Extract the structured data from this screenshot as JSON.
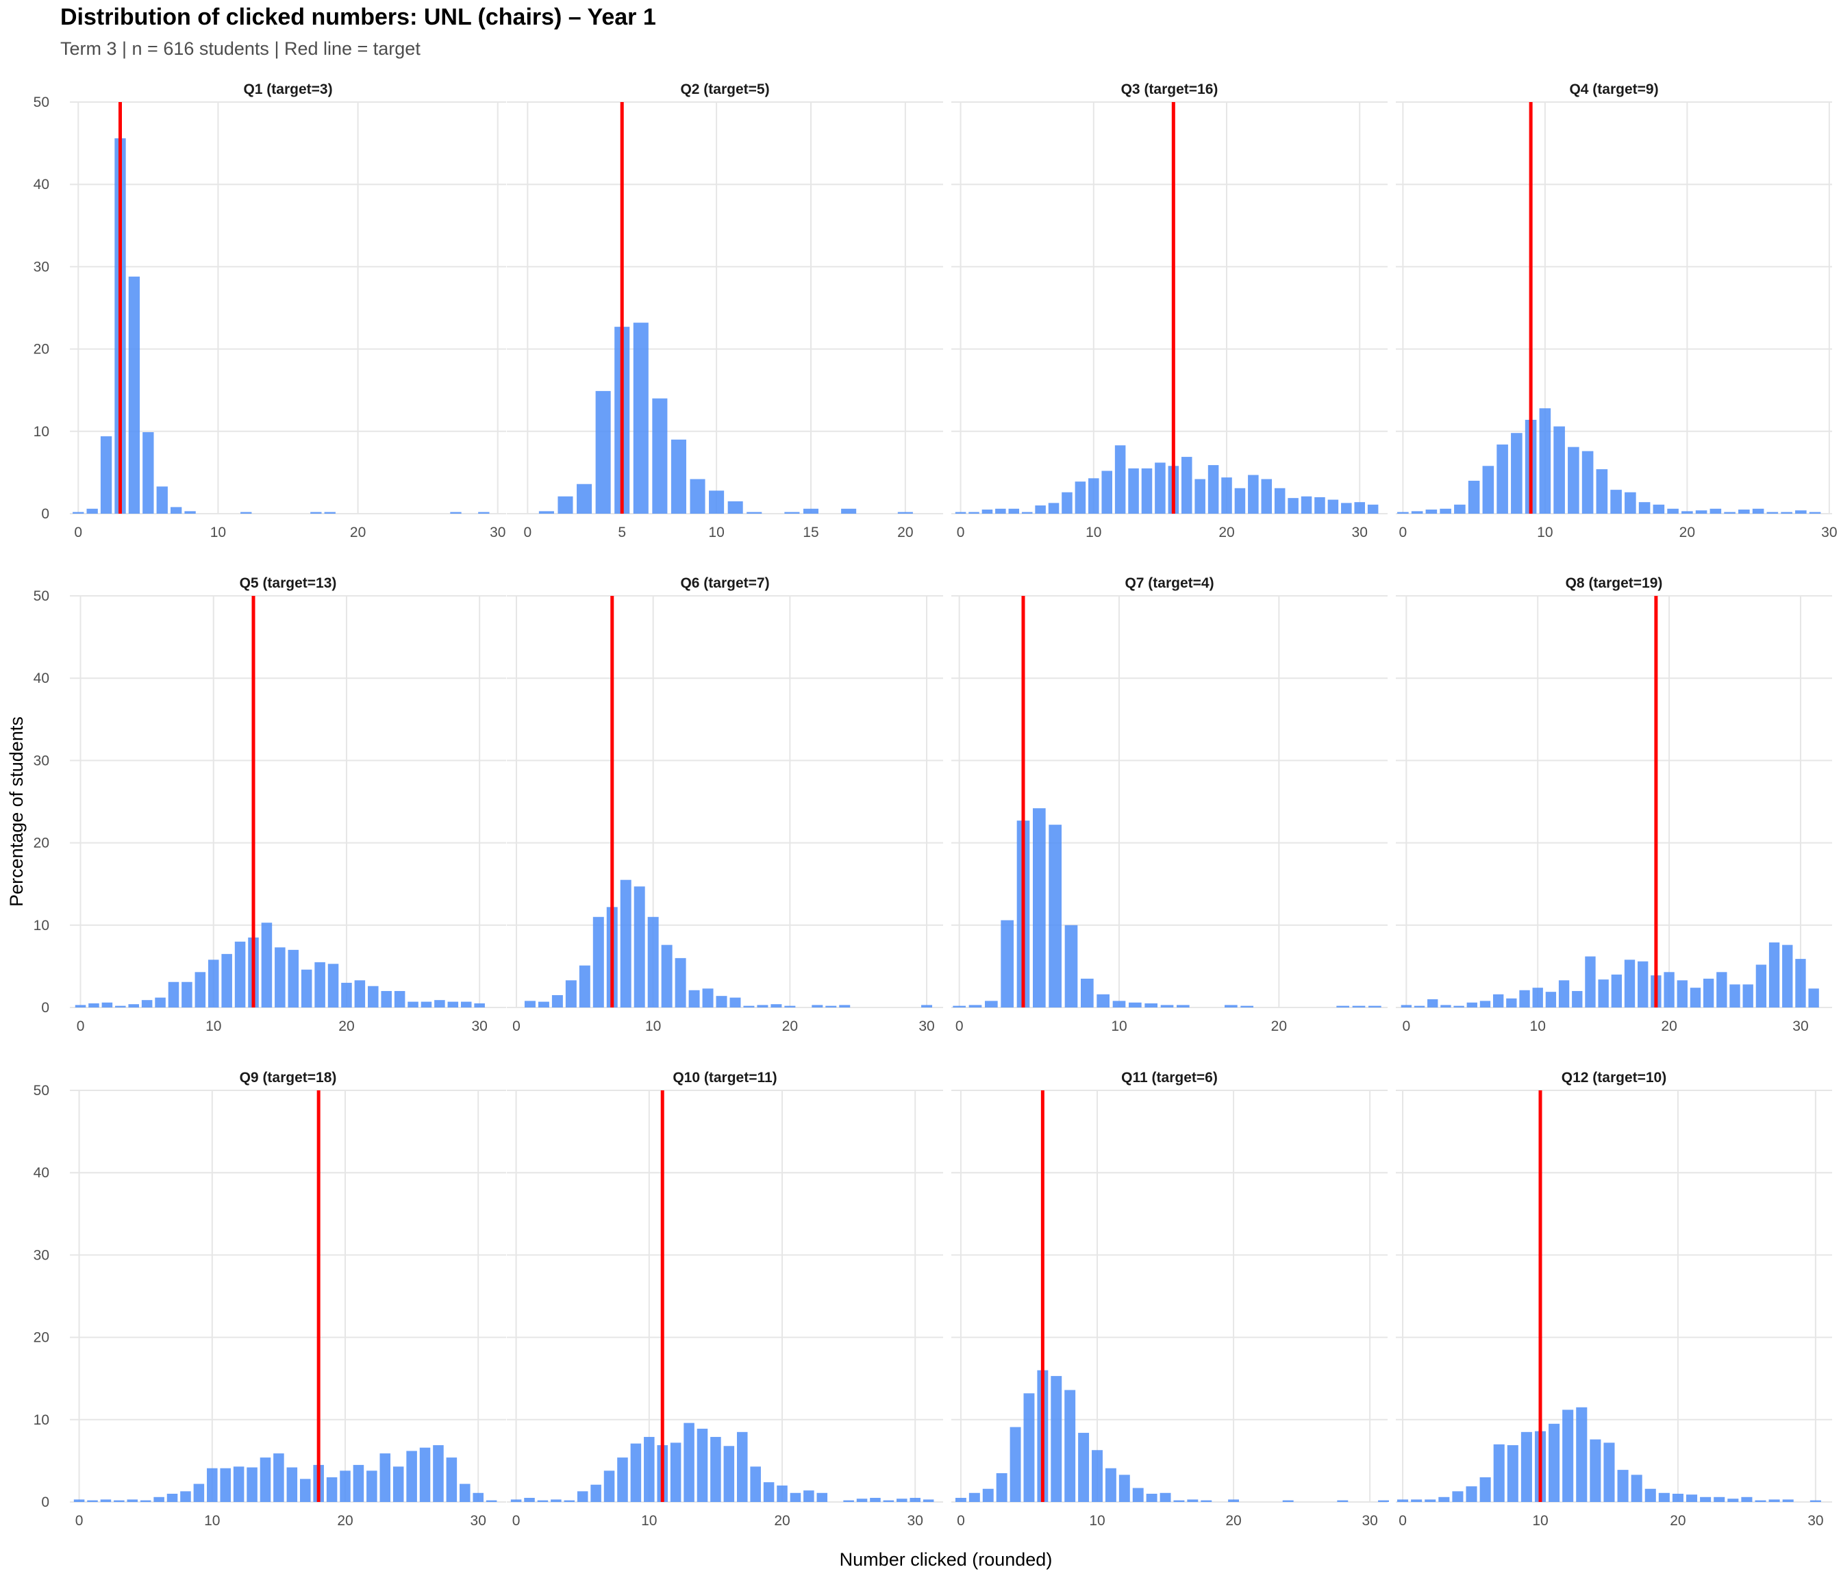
{
  "chart_data": {
    "type": "bar",
    "title": "Distribution of clicked numbers: UNL (chairs) – Year 1",
    "subtitle": "Term 3 | n = 616 students | Red line = target",
    "xlabel": "Number clicked (rounded)",
    "ylabel": "Percentage of students",
    "ylim": [
      0,
      50
    ],
    "yticks": [
      0,
      10,
      20,
      30,
      40,
      50
    ],
    "bar_color": "#4F8EF7",
    "target_color": "#FF0000",
    "grid": true,
    "facets": [
      {
        "name": "Q1 (target=3)",
        "target": 3,
        "xlim": [
          -0.6,
          30.6
        ],
        "xticks": [
          0,
          10,
          20,
          30
        ],
        "x": [
          0,
          1,
          2,
          3,
          4,
          5,
          6,
          7,
          8,
          12,
          17,
          18,
          27,
          29
        ],
        "values": [
          0.2,
          0.6,
          9.4,
          45.6,
          28.8,
          9.9,
          3.3,
          0.8,
          0.3,
          0.2,
          0.2,
          0.2,
          0.2,
          0.2
        ]
      },
      {
        "name": "Q2 (target=5)",
        "target": 5,
        "xlim": [
          -1.1,
          22.0
        ],
        "xticks": [
          0,
          5,
          10,
          15,
          20
        ],
        "x": [
          1,
          2,
          3,
          4,
          5,
          6,
          7,
          8,
          9,
          10,
          11,
          12,
          14,
          15,
          17,
          20
        ],
        "values": [
          0.3,
          2.1,
          3.6,
          14.9,
          22.7,
          23.2,
          14.0,
          9.0,
          4.2,
          2.8,
          1.5,
          0.2,
          0.2,
          0.6,
          0.6,
          0.2
        ]
      },
      {
        "name": "Q3 (target=16)",
        "target": 16,
        "xlim": [
          -0.7,
          32.1
        ],
        "xticks": [
          0,
          10,
          20,
          30
        ],
        "x": [
          0,
          1,
          2,
          3,
          4,
          5,
          6,
          7,
          8,
          9,
          10,
          11,
          12,
          13,
          14,
          15,
          16,
          17,
          18,
          19,
          20,
          21,
          22,
          23,
          24,
          25,
          26,
          27,
          28,
          29,
          30,
          31
        ],
        "values": [
          0.2,
          0.2,
          0.5,
          0.6,
          0.6,
          0.2,
          1.0,
          1.3,
          2.6,
          3.9,
          4.3,
          5.2,
          8.3,
          5.5,
          5.5,
          6.2,
          5.8,
          6.9,
          4.2,
          5.9,
          4.4,
          3.1,
          4.7,
          4.2,
          3.1,
          1.9,
          2.1,
          2.0,
          1.7,
          1.3,
          1.4,
          1.1
        ]
      },
      {
        "name": "Q4 (target=9)",
        "target": 9,
        "xlim": [
          -0.5,
          30.2
        ],
        "xticks": [
          0,
          10,
          20,
          30
        ],
        "x": [
          0,
          1,
          2,
          3,
          4,
          5,
          6,
          7,
          8,
          9,
          10,
          11,
          12,
          13,
          14,
          15,
          16,
          17,
          18,
          19,
          20,
          21,
          22,
          23,
          24,
          25,
          26,
          27,
          28,
          29
        ],
        "values": [
          0.2,
          0.3,
          0.5,
          0.6,
          1.1,
          4.0,
          5.8,
          8.4,
          9.8,
          11.4,
          12.8,
          10.6,
          8.1,
          7.6,
          5.4,
          2.9,
          2.6,
          1.4,
          1.1,
          0.6,
          0.3,
          0.4,
          0.6,
          0.2,
          0.5,
          0.6,
          0.2,
          0.2,
          0.4,
          0.2
        ]
      },
      {
        "name": "Q5 (target=13)",
        "target": 13,
        "xlim": [
          -0.8,
          32.0
        ],
        "xticks": [
          0,
          10,
          20,
          30
        ],
        "x": [
          0,
          1,
          2,
          3,
          4,
          5,
          6,
          7,
          8,
          9,
          10,
          11,
          12,
          13,
          14,
          15,
          16,
          17,
          18,
          19,
          20,
          21,
          22,
          23,
          24,
          25,
          26,
          27,
          28,
          29,
          30
        ],
        "values": [
          0.3,
          0.5,
          0.6,
          0.2,
          0.4,
          0.9,
          1.2,
          3.1,
          3.1,
          4.3,
          5.8,
          6.5,
          8.0,
          8.5,
          10.3,
          7.3,
          7.0,
          4.6,
          5.5,
          5.3,
          3.0,
          3.3,
          2.6,
          2.0,
          2.0,
          0.7,
          0.7,
          0.9,
          0.7,
          0.7,
          0.5
        ]
      },
      {
        "name": "Q6 (target=7)",
        "target": 7,
        "xlim": [
          -0.7,
          31.2
        ],
        "xticks": [
          0,
          10,
          20,
          30
        ],
        "x": [
          1,
          2,
          3,
          4,
          5,
          6,
          7,
          8,
          9,
          10,
          11,
          12,
          13,
          14,
          15,
          16,
          17,
          18,
          19,
          20,
          22,
          23,
          24,
          30
        ],
        "values": [
          0.8,
          0.7,
          1.5,
          3.3,
          5.1,
          11.0,
          12.2,
          15.5,
          14.7,
          11.0,
          7.6,
          6.0,
          2.1,
          2.3,
          1.4,
          1.2,
          0.2,
          0.3,
          0.4,
          0.2,
          0.3,
          0.2,
          0.3,
          0.3
        ]
      },
      {
        "name": "Q7 (target=4)",
        "target": 4,
        "xlim": [
          -0.5,
          26.8
        ],
        "xticks": [
          0,
          10,
          20
        ],
        "x": [
          0,
          1,
          2,
          3,
          4,
          5,
          6,
          7,
          8,
          9,
          10,
          11,
          12,
          13,
          14,
          17,
          18,
          24,
          25,
          26
        ],
        "values": [
          0.2,
          0.3,
          0.8,
          10.6,
          22.7,
          24.2,
          22.2,
          10.0,
          3.5,
          1.6,
          0.8,
          0.6,
          0.5,
          0.3,
          0.3,
          0.3,
          0.2,
          0.2,
          0.2,
          0.2
        ]
      },
      {
        "name": "Q8 (target=19)",
        "target": 19,
        "xlim": [
          -0.8,
          32.4
        ],
        "xticks": [
          0,
          10,
          20,
          30
        ],
        "x": [
          0,
          1,
          2,
          3,
          4,
          5,
          6,
          7,
          8,
          9,
          10,
          11,
          12,
          13,
          14,
          15,
          16,
          17,
          18,
          19,
          20,
          21,
          22,
          23,
          24,
          25,
          26,
          27,
          28,
          29,
          30,
          31
        ],
        "values": [
          0.3,
          0.2,
          1.0,
          0.3,
          0.2,
          0.6,
          0.8,
          1.6,
          1.1,
          2.1,
          2.4,
          1.9,
          3.3,
          2.0,
          6.2,
          3.4,
          4.0,
          5.8,
          5.6,
          3.9,
          4.3,
          3.3,
          2.4,
          3.5,
          4.3,
          2.8,
          2.8,
          5.2,
          7.9,
          7.6,
          5.9,
          2.3
        ]
      },
      {
        "name": "Q9 (target=18)",
        "target": 18,
        "xlim": [
          -0.7,
          32.1
        ],
        "xticks": [
          0,
          10,
          20,
          30
        ],
        "x": [
          0,
          1,
          2,
          3,
          4,
          5,
          6,
          7,
          8,
          9,
          10,
          11,
          12,
          13,
          14,
          15,
          16,
          17,
          18,
          19,
          20,
          21,
          22,
          23,
          24,
          25,
          26,
          27,
          28,
          29,
          30,
          31
        ],
        "values": [
          0.3,
          0.2,
          0.3,
          0.2,
          0.3,
          0.2,
          0.6,
          1.0,
          1.3,
          2.2,
          4.1,
          4.1,
          4.3,
          4.2,
          5.4,
          5.9,
          4.2,
          2.8,
          4.5,
          3.0,
          3.8,
          4.5,
          3.8,
          5.9,
          4.3,
          6.2,
          6.6,
          6.9,
          5.4,
          2.2,
          1.1,
          0.2
        ]
      },
      {
        "name": "Q10 (target=11)",
        "target": 11,
        "xlim": [
          -0.7,
          32.1
        ],
        "xticks": [
          0,
          10,
          20,
          30
        ],
        "x": [
          0,
          1,
          2,
          3,
          4,
          5,
          6,
          7,
          8,
          9,
          10,
          11,
          12,
          13,
          14,
          15,
          16,
          17,
          18,
          19,
          20,
          21,
          22,
          23,
          25,
          26,
          27,
          28,
          29,
          30,
          31
        ],
        "values": [
          0.3,
          0.5,
          0.2,
          0.3,
          0.2,
          1.3,
          2.1,
          3.8,
          5.4,
          7.1,
          7.9,
          6.9,
          7.2,
          9.6,
          8.9,
          7.9,
          6.8,
          8.5,
          4.3,
          2.4,
          2.0,
          1.1,
          1.4,
          1.1,
          0.2,
          0.4,
          0.5,
          0.2,
          0.4,
          0.5,
          0.3
        ]
      },
      {
        "name": "Q11 (target=6)",
        "target": 6,
        "xlim": [
          -0.7,
          31.3
        ],
        "xticks": [
          0,
          10,
          20,
          30
        ],
        "x": [
          0,
          1,
          2,
          3,
          4,
          5,
          6,
          7,
          8,
          9,
          10,
          11,
          12,
          13,
          14,
          15,
          16,
          17,
          18,
          20,
          24,
          28,
          31
        ],
        "values": [
          0.5,
          1.1,
          1.6,
          3.5,
          9.1,
          13.2,
          16.0,
          15.3,
          13.6,
          8.4,
          6.3,
          4.1,
          3.3,
          1.7,
          1.0,
          1.1,
          0.2,
          0.3,
          0.2,
          0.3,
          0.2,
          0.2,
          0.2
        ]
      },
      {
        "name": "Q12 (target=10)",
        "target": 10,
        "xlim": [
          -0.5,
          31.2
        ],
        "xticks": [
          0,
          10,
          20,
          30
        ],
        "x": [
          0,
          1,
          2,
          3,
          4,
          5,
          6,
          7,
          8,
          9,
          10,
          11,
          12,
          13,
          14,
          15,
          16,
          17,
          18,
          19,
          20,
          21,
          22,
          23,
          24,
          25,
          26,
          27,
          28,
          30
        ],
        "values": [
          0.3,
          0.3,
          0.3,
          0.6,
          1.3,
          1.9,
          3.0,
          7.0,
          6.9,
          8.5,
          8.6,
          9.5,
          11.2,
          11.5,
          7.6,
          7.2,
          3.9,
          3.3,
          1.6,
          1.1,
          1.0,
          0.9,
          0.6,
          0.6,
          0.4,
          0.6,
          0.2,
          0.3,
          0.3,
          0.2
        ]
      }
    ]
  }
}
